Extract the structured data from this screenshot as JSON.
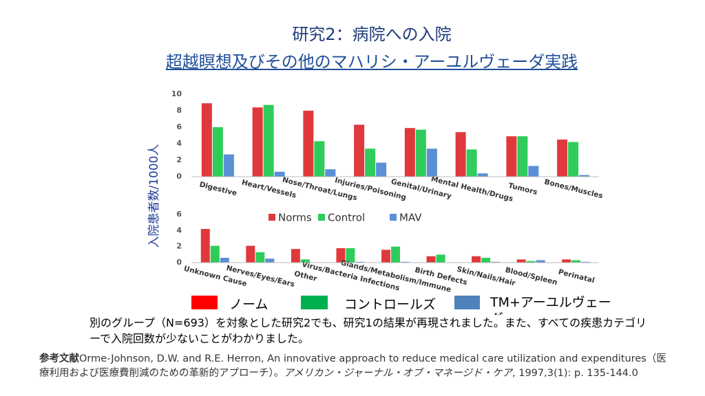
{
  "slide": {
    "title_line1": "研究2：病院への入院",
    "title_line2": "超越瞑想及びその他のマハリシ・アーユルヴェーダ実践",
    "legend_ja": [
      "ノーム",
      "コントロールズ",
      "TM+アーユルヴェーダ"
    ],
    "body": "別のグループ（N=693）を対象とした研究2でも、研究1の結果が再現されました。また、すべての疾患カテゴリーで入院回数が少ないことがわかりました。",
    "ref_label": "参考文献",
    "ref_text": "Orme-Johnson, D.W. and R.E. Herron, An innovative approach to reduce medical care utilization and expenditures（医療利用および医療費削減のための革新的アプローチ）。",
    "ref_journal": "アメリカン・ジャーナル・オブ・マネージド・ケア",
    "ref_tail": ", 1997,3(1): p. 135-144.0"
  },
  "chart_data": [
    {
      "type": "bar",
      "ylabel": "入院患者数/1000人",
      "categories": [
        "Digestive",
        "Heart/Vessels",
        "Nose/Throat/Lungs",
        "Injuries/Poisoning",
        "Genital/Urinary",
        "Mental Health/Drugs",
        "Tumors",
        "Bones/Muscles"
      ],
      "series": [
        {
          "color": "#e0393c",
          "values": [
            8.9,
            8.4,
            8.0,
            6.3,
            5.9,
            5.4,
            4.9,
            4.5
          ]
        },
        {
          "color": "#2fcc5c",
          "values": [
            6.0,
            8.7,
            4.3,
            3.4,
            5.7,
            3.3,
            4.9,
            4.2
          ]
        },
        {
          "color": "#5b8fd6",
          "values": [
            2.7,
            0.6,
            0.9,
            1.7,
            3.4,
            0.4,
            1.3,
            0.2
          ]
        }
      ],
      "ylim": [
        0,
        10
      ],
      "yticks": [
        0,
        2,
        4,
        6,
        8,
        10
      ]
    },
    {
      "type": "bar",
      "categories": [
        "Unknown Cause",
        "Nerves/Eyes/Ears",
        "Other",
        "Virus/Bacteria Infections",
        "Glands/Metabolism/Immune",
        "Birth Defects",
        "Skin/Nails/Hair",
        "Blood/Spleen",
        "Perinatal"
      ],
      "series": [
        {
          "name": "Norms",
          "color": "#e0393c",
          "values": [
            4.2,
            2.1,
            1.7,
            1.8,
            1.6,
            0.8,
            0.8,
            0.4,
            0.4
          ]
        },
        {
          "name": "Control",
          "color": "#2fcc5c",
          "values": [
            2.1,
            1.3,
            0.4,
            1.8,
            2.0,
            1.0,
            0.6,
            0.2,
            0.3
          ]
        },
        {
          "name": "MAV",
          "color": "#5b8fd6",
          "values": [
            0.6,
            0.5,
            0.0,
            0.1,
            0.1,
            0.0,
            0.1,
            0.3,
            0.1
          ]
        }
      ],
      "ylim": [
        0,
        6
      ],
      "yticks": [
        0,
        2,
        4,
        6
      ],
      "legend": "top"
    }
  ]
}
